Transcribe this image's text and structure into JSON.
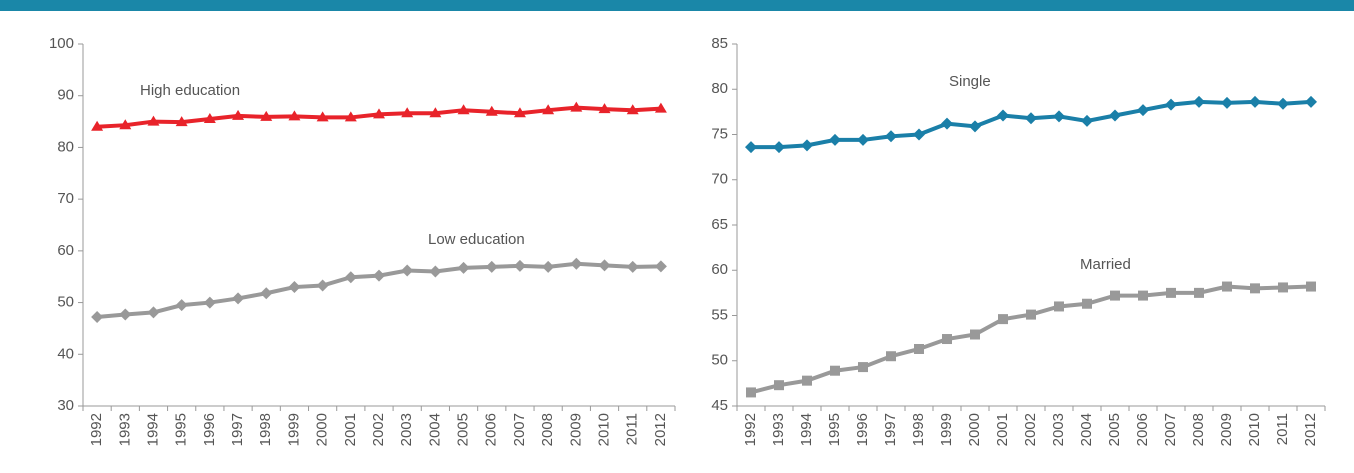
{
  "chart_data": [
    {
      "type": "line",
      "categories": [
        "1992",
        "1993",
        "1994",
        "1995",
        "1996",
        "1997",
        "1998",
        "1999",
        "2000",
        "2001",
        "2002",
        "2003",
        "2004",
        "2005",
        "2006",
        "2007",
        "2008",
        "2009",
        "2010",
        "2011",
        "2012"
      ],
      "series": [
        {
          "name": "High education",
          "color": "#e8232a",
          "marker": "triangle",
          "values": [
            84,
            84.3,
            85,
            84.9,
            85.5,
            86.1,
            85.9,
            86,
            85.8,
            85.8,
            86.4,
            86.6,
            86.6,
            87.2,
            86.9,
            86.6,
            87.2,
            87.7,
            87.4,
            87.2,
            87.5
          ]
        },
        {
          "name": "Low education",
          "color": "#999999",
          "marker": "diamond",
          "values": [
            47.2,
            47.7,
            48.1,
            49.5,
            50,
            50.8,
            51.8,
            53,
            53.3,
            54.9,
            55.2,
            56.2,
            56,
            56.7,
            56.9,
            57.1,
            56.9,
            57.5,
            57.2,
            56.9,
            57
          ]
        }
      ],
      "ylim": [
        30,
        100
      ],
      "yticks": [
        30,
        40,
        50,
        60,
        70,
        80,
        90,
        100
      ]
    },
    {
      "type": "line",
      "categories": [
        "1992",
        "1993",
        "1994",
        "1995",
        "1996",
        "1997",
        "1998",
        "1999",
        "2000",
        "2001",
        "2002",
        "2003",
        "2004",
        "2005",
        "2006",
        "2007",
        "2008",
        "2009",
        "2010",
        "2011",
        "2012"
      ],
      "series": [
        {
          "name": "Single",
          "color": "#1a7fa8",
          "marker": "diamond",
          "values": [
            73.6,
            73.6,
            73.8,
            74.4,
            74.4,
            74.8,
            75,
            76.2,
            75.9,
            77.1,
            76.8,
            77,
            76.5,
            77.1,
            77.7,
            78.3,
            78.6,
            78.5,
            78.6,
            78.4,
            78.6
          ]
        },
        {
          "name": "Married",
          "color": "#999999",
          "marker": "square",
          "values": [
            46.5,
            47.3,
            47.8,
            48.9,
            49.3,
            50.5,
            51.3,
            52.4,
            52.9,
            54.6,
            55.1,
            56,
            56.3,
            57.2,
            57.2,
            57.5,
            57.5,
            58.2,
            58,
            58.1,
            58.2
          ]
        }
      ],
      "ylim": [
        45,
        85
      ],
      "yticks": [
        45,
        50,
        55,
        60,
        65,
        70,
        75,
        80,
        85
      ]
    }
  ]
}
